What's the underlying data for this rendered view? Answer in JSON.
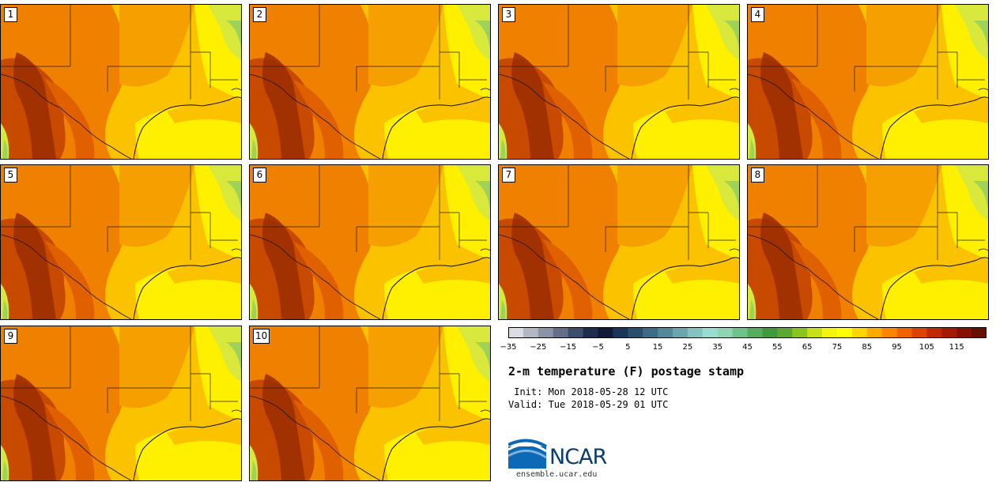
{
  "title": "2-m temperature (F) postage stamp",
  "init": " Init: Mon 2018-05-28 12 UTC",
  "valid": "Valid: Tue 2018-05-29 01 UTC",
  "logo": {
    "name": "NCAR",
    "url": "ensemble.ucar.edu"
  },
  "panels": [
    "1",
    "2",
    "3",
    "4",
    "5",
    "6",
    "7",
    "8",
    "9",
    "10"
  ],
  "colorbar": {
    "tick_labels": [
      "−35",
      "−25",
      "−15",
      "−5",
      "5",
      "15",
      "25",
      "35",
      "45",
      "55",
      "65",
      "75",
      "85",
      "95",
      "105",
      "115"
    ],
    "colors": [
      "#dcdde4",
      "#b3b7c4",
      "#8c93a6",
      "#646e89",
      "#3e4c6e",
      "#1f2c4d",
      "#101a37",
      "#1b3558",
      "#2a4f6e",
      "#3e6b85",
      "#538899",
      "#6ba6ad",
      "#85c3c0",
      "#98ddd0",
      "#8fd4b3",
      "#70c28a",
      "#56ad5e",
      "#3f9a3c",
      "#5ca832",
      "#8cc41f",
      "#c7e018",
      "#f3f50c",
      "#ffff00",
      "#ffd400",
      "#ffaa00",
      "#ff8500",
      "#f36200",
      "#de4200",
      "#c12900",
      "#a41a00",
      "#851200",
      "#651000"
    ]
  },
  "palette": {
    "hot3": "#9a2d00",
    "hot2": "#c84a00",
    "hot1": "#e06000",
    "orange": "#f08000",
    "amber": "#f5a000",
    "gold": "#fbc200",
    "yellow": "#fff000",
    "yellowgreen": "#d8e83c",
    "green": "#9fd258"
  }
}
